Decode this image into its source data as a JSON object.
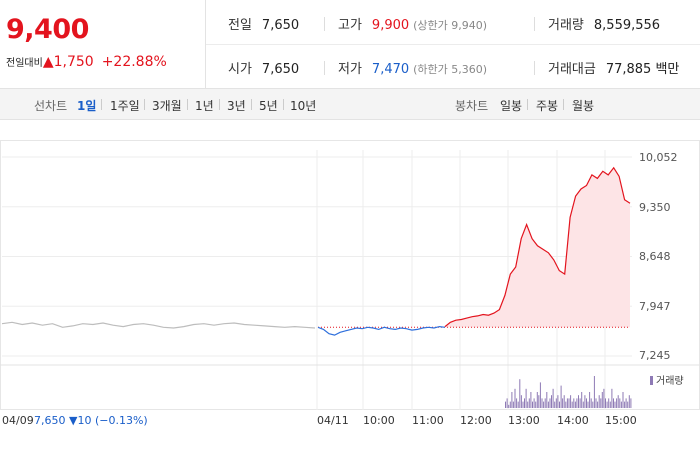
{
  "header": {
    "price": "9,400",
    "change_label": "전일대비",
    "change_arrow": "▲",
    "change_value": "1,750",
    "change_pct": "+22.88%"
  },
  "stats": {
    "prev_close": {
      "k": "전일",
      "v": "7,650"
    },
    "open": {
      "k": "시가",
      "v": "7,650"
    },
    "high": {
      "k": "고가",
      "v": "9,900",
      "sub": "(상한가 9,940)"
    },
    "low": {
      "k": "저가",
      "v": "7,470",
      "sub": "(하한가 5,360)"
    },
    "volume": {
      "k": "거래량",
      "v": "8,559,556"
    },
    "amount": {
      "k": "거래대금",
      "v": "77,885 백만"
    }
  },
  "periods": {
    "line_label": "선차트",
    "line_items": [
      "1일",
      "1주일",
      "3개월",
      "1년",
      "3년",
      "5년",
      "10년"
    ],
    "line_active": "1일",
    "candle_label": "봉차트",
    "candle_items": [
      "일봉",
      "주봉",
      "월봉"
    ]
  },
  "chart_data": {
    "type": "line",
    "y_ticks": [
      "10,052",
      "9,350",
      "8,648",
      "7,947",
      "7,245"
    ],
    "ylim": [
      7245,
      10052
    ],
    "x_ticks": [
      "04/09",
      "04/11",
      "10:00",
      "11:00",
      "12:00",
      "13:00",
      "14:00",
      "15:00"
    ],
    "prev_close": 7650,
    "series": [
      {
        "name": "04/09",
        "color": "#bdbdbd",
        "values": [
          7700,
          7720,
          7690,
          7710,
          7680,
          7700,
          7650,
          7670,
          7700,
          7690,
          7710,
          7680,
          7660,
          7690,
          7700,
          7680,
          7650,
          7640,
          7660,
          7690,
          7700,
          7680,
          7700,
          7710,
          7690,
          7680,
          7670,
          7660,
          7650,
          7660,
          7650,
          7640
        ]
      },
      {
        "name": "04/11 below",
        "color": "#2e6fdc",
        "values": [
          7650,
          7620,
          7560,
          7540,
          7580,
          7600,
          7620,
          7640,
          7630,
          7650,
          7640,
          7620,
          7650,
          7630,
          7620,
          7640,
          7630,
          7610,
          7620,
          7640,
          7650,
          7640,
          7660,
          7650
        ]
      },
      {
        "name": "04/11 above",
        "color": "#e3141e",
        "values": [
          7660,
          7720,
          7750,
          7760,
          7780,
          7800,
          7810,
          7830,
          7820,
          7850,
          7900,
          8100,
          8400,
          8500,
          8900,
          9100,
          8900,
          8800,
          8750,
          8700,
          8600,
          8450,
          8400,
          9200,
          9500,
          9600,
          9650,
          9800,
          9750,
          9850,
          9800,
          9900,
          9780,
          9450,
          9400
        ]
      }
    ],
    "volume_label": "거래량",
    "volume": [
      2,
      3,
      1,
      2,
      5,
      2,
      6,
      3,
      2,
      9,
      4,
      2,
      3,
      6,
      2,
      3,
      5,
      2,
      3,
      2,
      5,
      4,
      8,
      3,
      2,
      3,
      5,
      2,
      3,
      4,
      6,
      2,
      3,
      4,
      2,
      7,
      3,
      4,
      2,
      3,
      3,
      4,
      2,
      3,
      2,
      3,
      4,
      3,
      5,
      2,
      4,
      3,
      2,
      5,
      3,
      2,
      10,
      3,
      2,
      4,
      3,
      5,
      6,
      3,
      2,
      3,
      2,
      6,
      3,
      2,
      3,
      4,
      3,
      2,
      5,
      2,
      3,
      2,
      4,
      3
    ],
    "volume_color": "#8e7ab5"
  },
  "prev_info": {
    "price": "7,650",
    "arrow": "▼",
    "change": "10",
    "pct": "(−0.13%)"
  }
}
